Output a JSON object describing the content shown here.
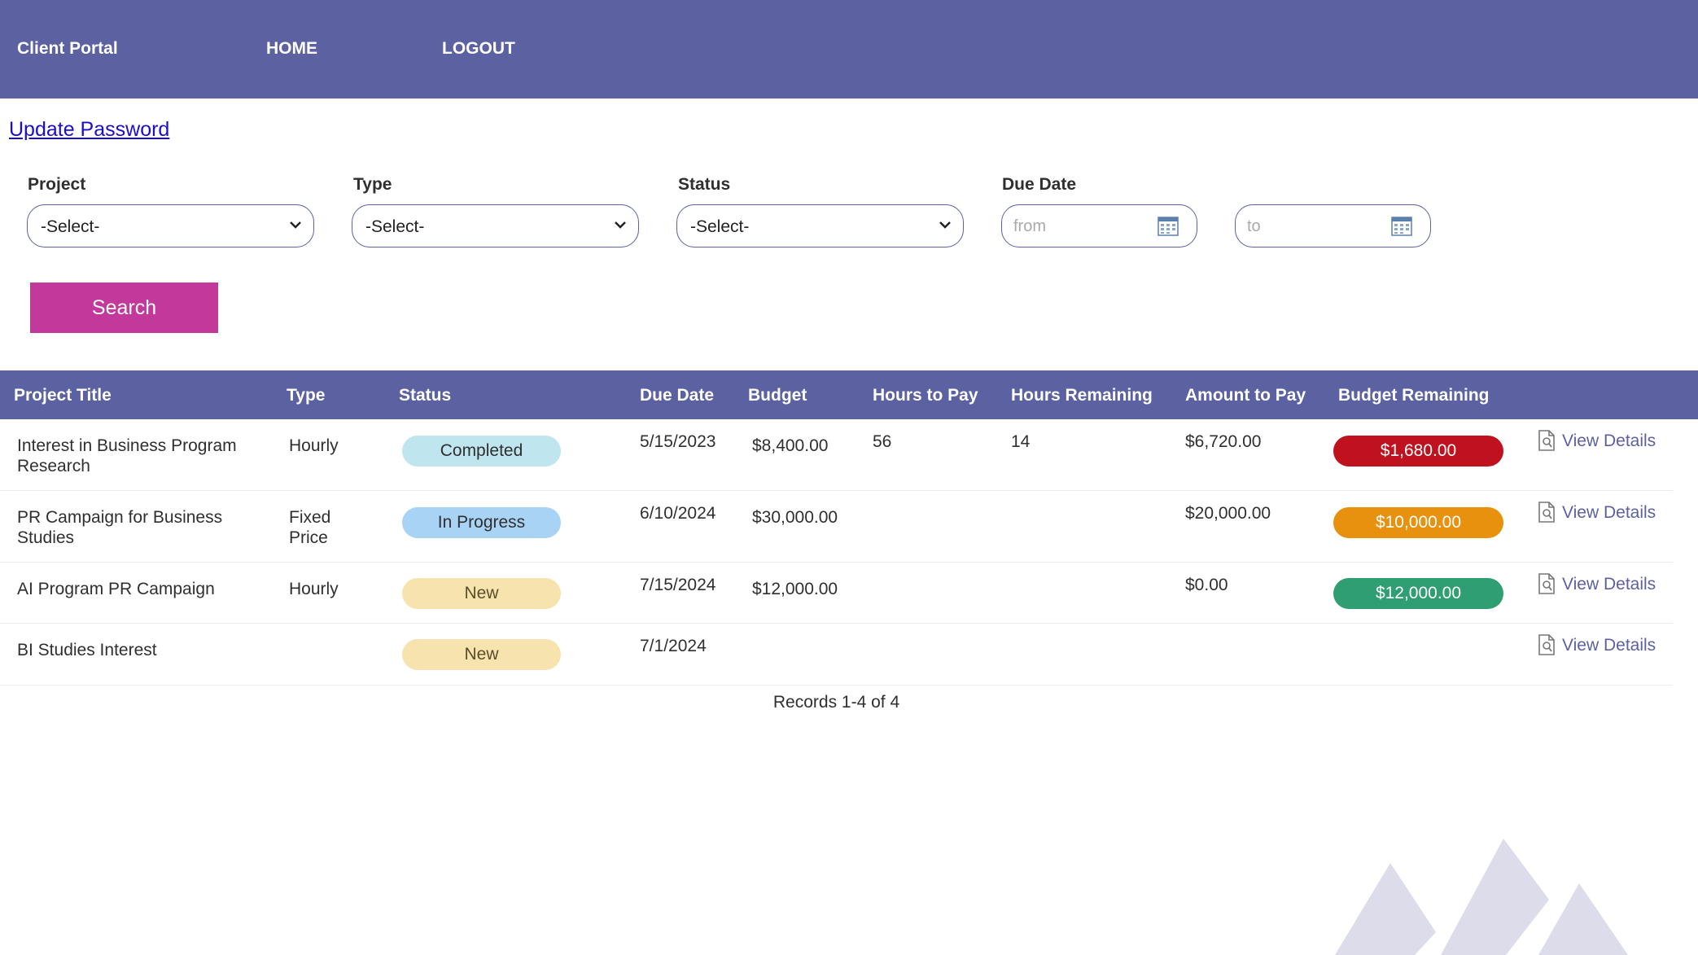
{
  "nav": {
    "brand": "Client Portal",
    "home": "HOME",
    "logout": "LOGOUT"
  },
  "update_password": "Update Password",
  "filters": {
    "project": {
      "label": "Project",
      "selected": "-Select-"
    },
    "type": {
      "label": "Type",
      "selected": "-Select-"
    },
    "status": {
      "label": "Status",
      "selected": "-Select-"
    },
    "due_date": {
      "label": "Due Date",
      "from_placeholder": "from",
      "to_placeholder": "to"
    },
    "search_label": "Search"
  },
  "table": {
    "headers": [
      "Project Title",
      "Type",
      "Status",
      "Due Date",
      "Budget",
      "Hours to Pay",
      "Hours Remaining",
      "Amount to Pay",
      "Budget Remaining"
    ],
    "rows": [
      {
        "title_line1": "Interest in Business Program",
        "title_line2": "Research",
        "type_line1": "Hourly",
        "type_line2": "",
        "status": "Completed",
        "due_date": "5/15/2023",
        "budget": "$8,400.00",
        "hours_to_pay": "56",
        "hours_remaining": "14",
        "amount_to_pay": "$6,720.00",
        "budget_remaining": "$1,680.00",
        "view": "View Details"
      },
      {
        "title_line1": "PR Campaign for Business",
        "title_line2": "Studies",
        "type_line1": "Fixed",
        "type_line2": "Price",
        "status": "In Progress",
        "due_date": "6/10/2024",
        "budget": "$30,000.00",
        "hours_to_pay": "",
        "hours_remaining": "",
        "amount_to_pay": "$20,000.00",
        "budget_remaining": "$10,000.00",
        "view": "View Details"
      },
      {
        "title_line1": "AI Program PR Campaign",
        "title_line2": "",
        "type_line1": "Hourly",
        "type_line2": "",
        "status": "New",
        "due_date": "7/15/2024",
        "budget": "$12,000.00",
        "hours_to_pay": "",
        "hours_remaining": "",
        "amount_to_pay": "$0.00",
        "budget_remaining": "$12,000.00",
        "view": "View Details"
      },
      {
        "title_line1": "BI Studies Interest",
        "title_line2": "",
        "type_line1": "",
        "type_line2": "",
        "status": "New",
        "due_date": "7/1/2024",
        "budget": "",
        "hours_to_pay": "",
        "hours_remaining": "",
        "amount_to_pay": "",
        "budget_remaining": "",
        "view": "View Details"
      }
    ],
    "records_text": "Records 1-4 of 4"
  },
  "colors": {
    "brand": "#5b61a1",
    "search_button": "#c2399b",
    "budget_red": "#c0111f",
    "budget_orange": "#e8910f",
    "budget_green": "#2f9e72"
  }
}
